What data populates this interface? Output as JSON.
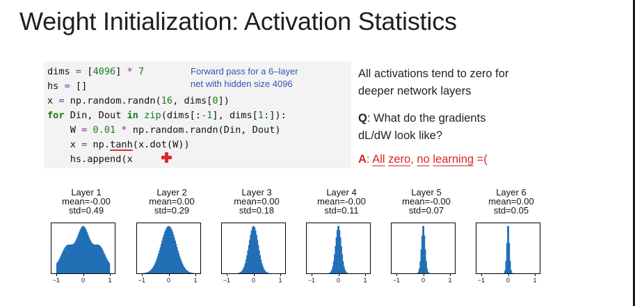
{
  "slide": {
    "title": "Weight Initialization: Activation Statistics",
    "code_lines": [
      [
        {
          "t": "dims ",
          "c": ""
        },
        {
          "t": "=",
          "c": "op"
        },
        {
          "t": " [",
          "c": ""
        },
        {
          "t": "4096",
          "c": "num"
        },
        {
          "t": "] ",
          "c": ""
        },
        {
          "t": "*",
          "c": "op"
        },
        {
          "t": " ",
          "c": ""
        },
        {
          "t": "7",
          "c": "num"
        }
      ],
      [
        {
          "t": "hs ",
          "c": ""
        },
        {
          "t": "=",
          "c": "op"
        },
        {
          "t": " []",
          "c": ""
        }
      ],
      [
        {
          "t": "x ",
          "c": ""
        },
        {
          "t": "=",
          "c": "op"
        },
        {
          "t": " np.random.randn(",
          "c": ""
        },
        {
          "t": "16",
          "c": "num"
        },
        {
          "t": ", dims[",
          "c": ""
        },
        {
          "t": "0",
          "c": "num"
        },
        {
          "t": "])",
          "c": ""
        }
      ],
      [
        {
          "t": "for",
          "c": "kw"
        },
        {
          "t": " Din, Dout ",
          "c": ""
        },
        {
          "t": "in",
          "c": "kw"
        },
        {
          "t": " ",
          "c": ""
        },
        {
          "t": "zip",
          "c": "num"
        },
        {
          "t": "(dims[:",
          "c": ""
        },
        {
          "t": "-1",
          "c": "num"
        },
        {
          "t": "], dims[",
          "c": ""
        },
        {
          "t": "1",
          "c": "num"
        },
        {
          "t": ":]):",
          "c": ""
        }
      ],
      [
        {
          "t": "    W ",
          "c": ""
        },
        {
          "t": "=",
          "c": "op"
        },
        {
          "t": " ",
          "c": ""
        },
        {
          "t": "0.01",
          "c": "num"
        },
        {
          "t": " ",
          "c": ""
        },
        {
          "t": "*",
          "c": "op"
        },
        {
          "t": " np.random.randn(Din, Dout)",
          "c": ""
        }
      ],
      [
        {
          "t": "    x ",
          "c": ""
        },
        {
          "t": "=",
          "c": "op"
        },
        {
          "t": " np.",
          "c": ""
        },
        {
          "t": "tanh",
          "c": "ul"
        },
        {
          "t": "(x.dot(W))",
          "c": ""
        }
      ],
      [
        {
          "t": "    hs.append(x",
          "c": ""
        }
      ]
    ],
    "annotation": [
      "Forward pass for a 6–layer",
      "net with hidden size 4096"
    ],
    "bullet1": [
      "All activations tend to zero for",
      "deeper network layers"
    ],
    "bullet2": {
      "q": "Q",
      "rest1": ": What do the gradients",
      "line2": "dL/dW look like?"
    },
    "bullet3": {
      "a": "A",
      "sep": ": ",
      "w1": "All",
      "sp1": " ",
      "w2": "zero",
      "sep2": ", ",
      "w3": "no",
      "sp2": " ",
      "w4": "learning",
      "end": " =("
    }
  },
  "colors": {
    "hist_fill": "#1f6db5",
    "annotation": "#2f55b5",
    "answer": "#d6281e"
  },
  "chart_data": [
    {
      "type": "bar",
      "title": "Layer 1",
      "mean_label": "mean=-0.00",
      "std_label": "std=0.49",
      "std": 0.49,
      "xlim": [
        -1,
        1
      ],
      "xticks": [
        "−1",
        "0",
        "1"
      ]
    },
    {
      "type": "bar",
      "title": "Layer 2",
      "mean_label": "mean=0.00",
      "std_label": "std=0.29",
      "std": 0.29,
      "xlim": [
        -1,
        1
      ],
      "xticks": [
        "−1",
        "0",
        "1"
      ]
    },
    {
      "type": "bar",
      "title": "Layer 3",
      "mean_label": "mean=0.00",
      "std_label": "std=0.18",
      "std": 0.18,
      "xlim": [
        -1,
        1
      ],
      "xticks": [
        "−1",
        "0",
        "1"
      ]
    },
    {
      "type": "bar",
      "title": "Layer 4",
      "mean_label": "mean=-0.00",
      "std_label": "std=0.11",
      "std": 0.11,
      "xlim": [
        -1,
        1
      ],
      "xticks": [
        "−1",
        "0",
        "1"
      ]
    },
    {
      "type": "bar",
      "title": "Layer 5",
      "mean_label": "mean=-0.00",
      "std_label": "std=0.07",
      "std": 0.07,
      "xlim": [
        -1,
        1
      ],
      "xticks": [
        "−1",
        "0",
        "1"
      ]
    },
    {
      "type": "bar",
      "title": "Layer 6",
      "mean_label": "mean=0.00",
      "std_label": "std=0.05",
      "std": 0.05,
      "xlim": [
        -1,
        1
      ],
      "xticks": [
        "−1",
        "0",
        "1"
      ]
    }
  ]
}
